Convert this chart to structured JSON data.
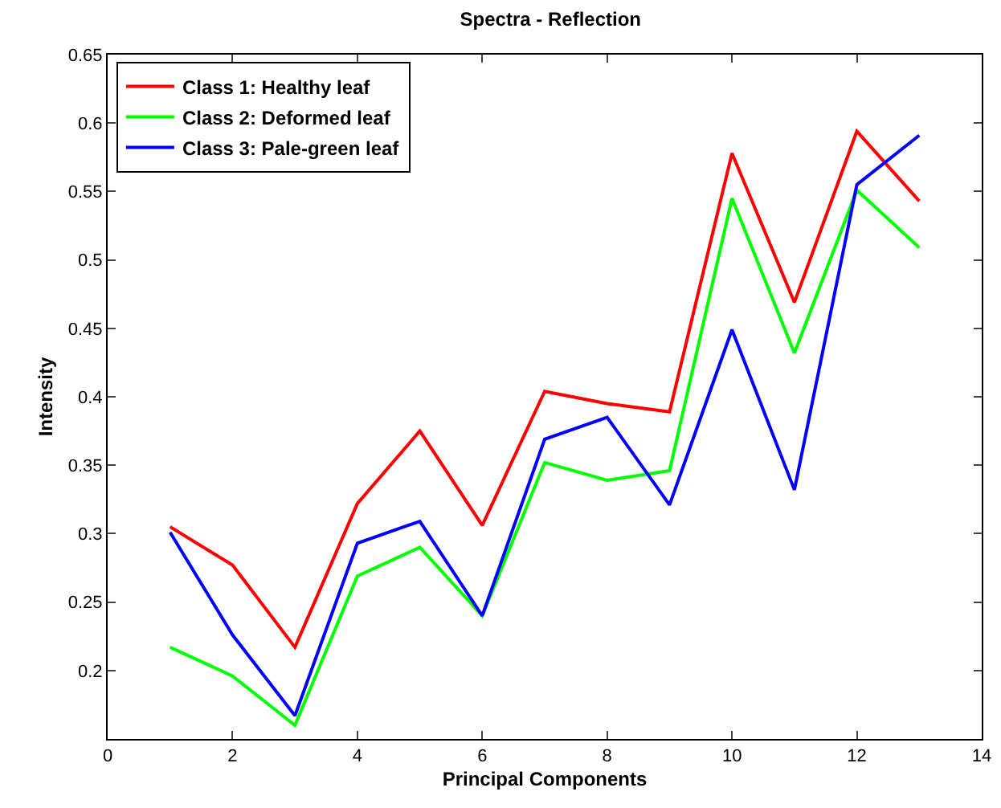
{
  "chart_data": {
    "type": "line",
    "title": "Spectra - Reflection",
    "xlabel": "Principal Components",
    "ylabel": "Intensity",
    "x": [
      1,
      2,
      3,
      4,
      5,
      6,
      7,
      8,
      9,
      10,
      11,
      12,
      13
    ],
    "series": [
      {
        "name": "Class 1: Healthy leaf",
        "color": "#ff0000",
        "values": [
          0.305,
          0.277,
          0.217,
          0.322,
          0.375,
          0.306,
          0.404,
          0.395,
          0.389,
          0.578,
          0.469,
          0.594,
          0.543
        ]
      },
      {
        "name": "Class 2: Deformed leaf",
        "color": "#00ff00",
        "values": [
          0.217,
          0.196,
          0.16,
          0.269,
          0.29,
          0.24,
          0.352,
          0.339,
          0.346,
          0.545,
          0.432,
          0.551,
          0.509
        ]
      },
      {
        "name": "Class 3: Pale-green leaf",
        "color": "#0000ff",
        "values": [
          0.301,
          0.226,
          0.167,
          0.293,
          0.309,
          0.24,
          0.369,
          0.385,
          0.321,
          0.449,
          0.332,
          0.555,
          0.591
        ]
      }
    ],
    "xlim": [
      0,
      14
    ],
    "xticks": [
      0,
      2,
      4,
      6,
      8,
      10,
      12,
      14
    ],
    "ylim": [
      0.15,
      0.65
    ],
    "yticks": [
      0.2,
      0.25,
      0.3,
      0.35,
      0.4,
      0.45,
      0.5,
      0.55,
      0.6,
      0.65
    ],
    "grid": false,
    "legend": "top left",
    "marker": "none",
    "line_style": "solid"
  }
}
